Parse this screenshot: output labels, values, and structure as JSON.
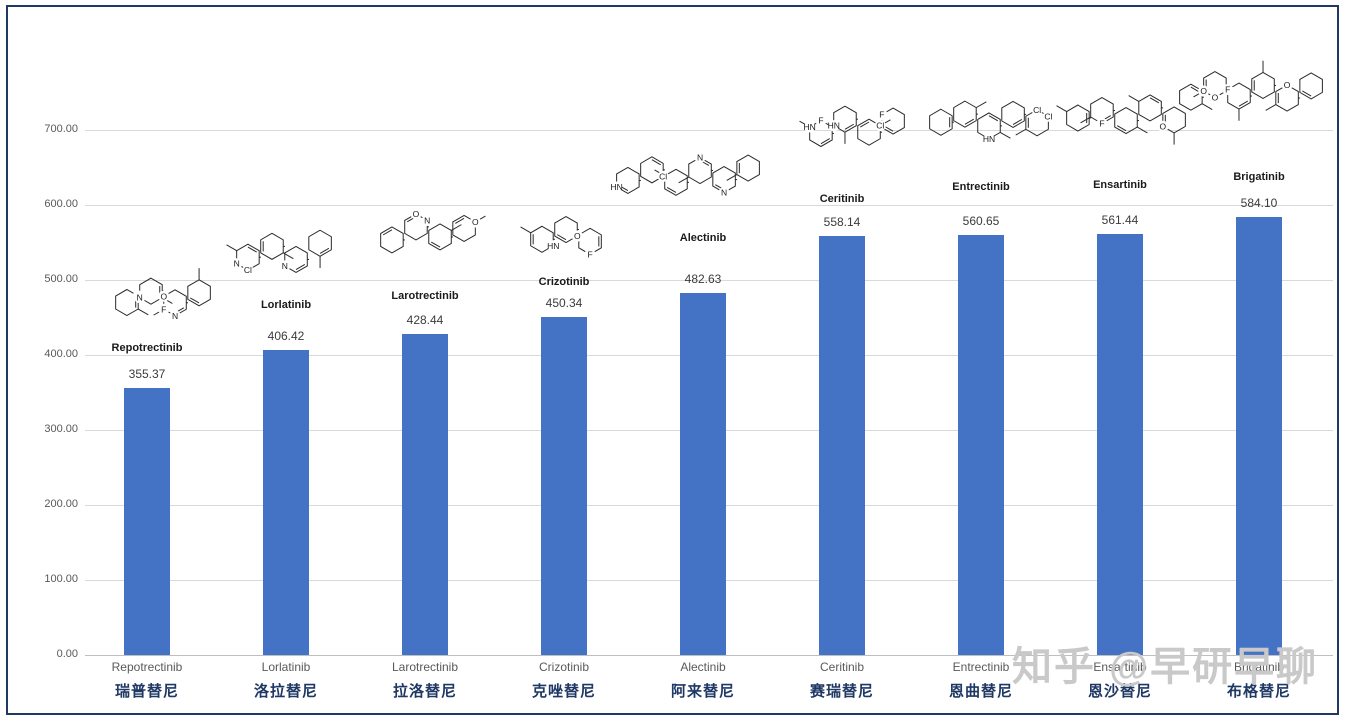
{
  "chart_data": {
    "type": "bar",
    "title": "",
    "xlabel": "",
    "ylabel": "",
    "categories": [
      "Repotrectinib",
      "Lorlatinib",
      "Larotrectinib",
      "Crizotinib",
      "Alectinib",
      "Ceritinib",
      "Entrectinib",
      "Ensartinib",
      "Brigatinib"
    ],
    "categories_zh": [
      "瑞普替尼",
      "洛拉替尼",
      "拉洛替尼",
      "克唑替尼",
      "阿来替尼",
      "赛瑞替尼",
      "恩曲替尼",
      "恩沙替尼",
      "布格替尼"
    ],
    "values": [
      355.37,
      406.42,
      428.44,
      450.34,
      482.63,
      558.14,
      560.65,
      561.44,
      584.1
    ],
    "value_labels": [
      "355.37",
      "406.42",
      "428.44",
      "450.34",
      "482.63",
      "558.14",
      "560.65",
      "561.44",
      "584.10"
    ],
    "structure_labels": [
      "Repotrectinib",
      "Lorlatinib",
      "Larotrectinib",
      "Crizotinib",
      "Alectinib",
      "Ceritinib",
      "Entrectinib",
      "Ensartinib",
      "Brigatinib"
    ],
    "ylim": [
      0,
      700
    ],
    "yticks": [
      "0.00",
      "100.00",
      "200.00",
      "300.00",
      "400.00",
      "500.00",
      "600.00",
      "700.00"
    ],
    "grid": "horizontal",
    "legend": "none",
    "bar_color": "#4472C4",
    "accent_color": "#1F3864"
  },
  "watermark": "知乎 @早研早聊"
}
